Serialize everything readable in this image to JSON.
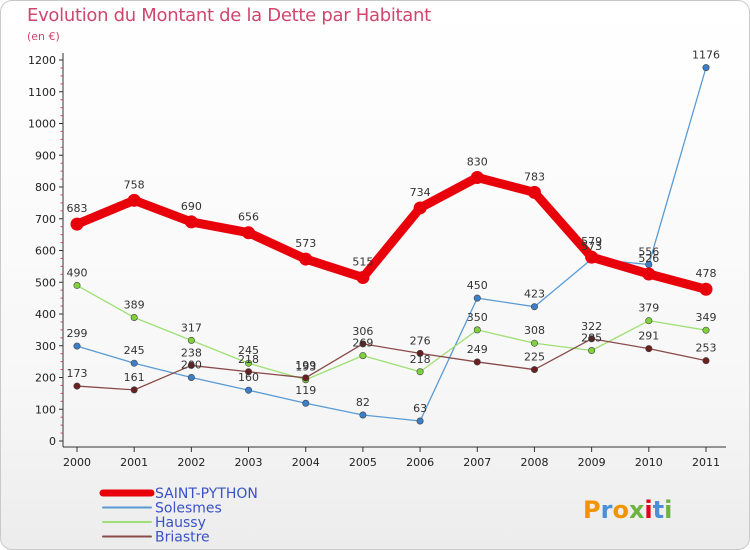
{
  "chart_data": {
    "type": "line",
    "title": "Evolution du Montant de la Dette par Habitant",
    "subtitle": "(en €)",
    "categories": [
      "2000",
      "2001",
      "2002",
      "2003",
      "2004",
      "2005",
      "2006",
      "2007",
      "2008",
      "2009",
      "2010",
      "2011"
    ],
    "ylim": [
      0,
      1200
    ],
    "yticks": [
      0,
      100,
      200,
      300,
      400,
      500,
      600,
      700,
      800,
      900,
      1000,
      1100,
      1200
    ],
    "grid": false,
    "legend_position": "bottom-left",
    "series": [
      {
        "name": "SAINT-PYTHON",
        "color": "#e8000b",
        "emphasis": true,
        "values": [
          683,
          758,
          690,
          656,
          573,
          515,
          734,
          830,
          783,
          579,
          526,
          478
        ]
      },
      {
        "name": "Solesmes",
        "color": "#5a9bd4",
        "point_color": "#3a7fc8",
        "values": [
          299,
          245,
          200,
          160,
          119,
          82,
          63,
          450,
          423,
          573,
          556,
          1176
        ]
      },
      {
        "name": "Haussy",
        "color": "#9ee074",
        "point_color": "#7fd23c",
        "values": [
          490,
          389,
          317,
          245,
          193,
          269,
          218,
          350,
          308,
          285,
          379,
          349
        ]
      },
      {
        "name": "Briastre",
        "color": "#8b4a4a",
        "point_color": "#6b1f1f",
        "values": [
          173,
          161,
          238,
          218,
          199,
          306,
          276,
          249,
          225,
          322,
          291,
          253
        ]
      }
    ]
  },
  "logo": {
    "text": "Proxiti",
    "colors": [
      "#f29400",
      "#4a90d9",
      "#f29400",
      "#6cb33f",
      "#e2001a",
      "#4a90d9",
      "#6cb33f"
    ]
  }
}
